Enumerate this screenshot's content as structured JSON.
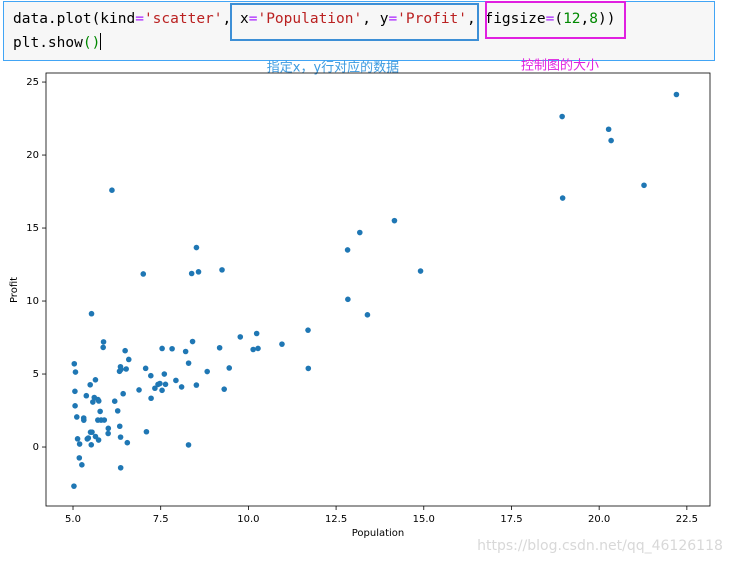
{
  "code": {
    "lines": [
      [
        {
          "text": "data.plot(kind",
          "color": "#000000"
        },
        {
          "text": "=",
          "color": "#aa22ff"
        },
        {
          "text": "'scatter'",
          "color": "#ba2121"
        },
        {
          "text": ", x",
          "color": "#000000"
        },
        {
          "text": "=",
          "color": "#aa22ff"
        },
        {
          "text": "'Population'",
          "color": "#ba2121"
        },
        {
          "text": ", y",
          "color": "#000000"
        },
        {
          "text": "=",
          "color": "#aa22ff"
        },
        {
          "text": "'Profit'",
          "color": "#ba2121"
        },
        {
          "text": ", figsize",
          "color": "#000000"
        },
        {
          "text": "=",
          "color": "#aa22ff"
        },
        {
          "text": "(",
          "color": "#000000"
        },
        {
          "text": "12",
          "color": "#008800"
        },
        {
          "text": ",",
          "color": "#000000"
        },
        {
          "text": "8",
          "color": "#008800"
        },
        {
          "text": "))",
          "color": "#000000"
        }
      ],
      [
        {
          "text": "plt.show",
          "color": "#000000"
        },
        {
          "text": "()",
          "color": "#008800"
        }
      ]
    ]
  },
  "annotations": [
    {
      "text": "指定x，y行对应的数据",
      "color": "#3d9be0"
    },
    {
      "text": "控制图的大小",
      "color": "#e020e0"
    }
  ],
  "watermark": "https://blog.csdn.net/qq_46126118",
  "chart_data": {
    "type": "scatter",
    "x_label": "Population",
    "y_label": "Profit",
    "color": "#1f77b4",
    "x": [
      6.1101,
      5.5277,
      8.5186,
      7.0032,
      5.8598,
      8.3829,
      7.4764,
      8.5781,
      6.4862,
      5.0546,
      5.7107,
      14.164,
      5.734,
      8.4084,
      5.6407,
      5.3794,
      6.3654,
      5.1301,
      6.4296,
      7.0708,
      6.1891,
      20.27,
      5.4901,
      6.3261,
      5.5649,
      18.945,
      12.828,
      10.957,
      13.176,
      22.203,
      5.2524,
      6.5894,
      9.2482,
      5.8918,
      8.2111,
      7.9334,
      8.0959,
      5.6063,
      12.836,
      6.3534,
      5.4069,
      6.8825,
      11.708,
      5.7737,
      7.8247,
      7.0931,
      5.0702,
      5.8014,
      11.7,
      5.5416,
      7.5402,
      5.3077,
      7.4239,
      7.6031,
      6.3328,
      6.3589,
      6.2742,
      5.6397,
      9.3102,
      9.4536,
      8.8254,
      5.1793,
      21.279,
      14.908,
      18.959,
      7.2182,
      8.2951,
      10.236,
      5.4994,
      20.341,
      10.136,
      7.3345,
      6.0062,
      7.2259,
      5.0269,
      6.5479,
      7.5386,
      5.0365,
      10.274,
      5.1077,
      5.7292,
      5.1884,
      6.3557,
      9.7687,
      6.5159,
      8.5172,
      9.1802,
      6.002,
      5.5204,
      5.0594,
      5.7077,
      7.6366,
      5.8707,
      5.3054,
      8.2934,
      13.394,
      5.4369
    ],
    "values": [
      17.592,
      9.1302,
      13.662,
      11.854,
      6.8233,
      11.886,
      4.3483,
      12,
      6.5987,
      3.8166,
      3.2522,
      15.505,
      3.1551,
      7.2258,
      0.71618,
      3.5129,
      5.3048,
      0.56077,
      3.6518,
      5.3893,
      3.1386,
      21.767,
      4.263,
      5.1875,
      3.0825,
      22.638,
      13.501,
      7.0467,
      14.692,
      24.147,
      -1.22,
      5.9966,
      12.134,
      1.8495,
      6.5426,
      4.5623,
      4.1164,
      3.3928,
      10.117,
      5.4974,
      0.55657,
      3.9115,
      5.3854,
      2.4406,
      6.7318,
      1.0463,
      5.1337,
      1.844,
      8.0043,
      1.0179,
      6.7504,
      1.8396,
      4.2885,
      4.9981,
      1.4233,
      -1.4211,
      2.4756,
      4.6042,
      3.9624,
      5.4141,
      5.1694,
      -0.74279,
      17.929,
      12.054,
      17.054,
      4.8852,
      5.7442,
      7.7754,
      1.0173,
      20.992,
      6.6799,
      4.0259,
      1.2784,
      3.3411,
      -2.6807,
      0.29678,
      3.8845,
      5.7014,
      6.7526,
      2.0576,
      0.47953,
      0.20421,
      0.67861,
      7.5435,
      5.3436,
      4.2415,
      6.7981,
      0.92695,
      0.152,
      2.8214,
      1.8451,
      4.2959,
      7.2029,
      1.9869,
      0.14454,
      9.0551,
      0.61705
    ],
    "xlim": [
      4.23,
      23.16
    ],
    "ylim": [
      -4.04,
      25.62
    ],
    "xticks": [
      {
        "value": 5,
        "label": "5.0"
      },
      {
        "value": 7.5,
        "label": "7.5"
      },
      {
        "value": 10,
        "label": "10.0"
      },
      {
        "value": 12.5,
        "label": "12.5"
      },
      {
        "value": 15,
        "label": "15.0"
      },
      {
        "value": 17.5,
        "label": "17.5"
      },
      {
        "value": 20,
        "label": "20.0"
      },
      {
        "value": 22.5,
        "label": "22.5"
      }
    ],
    "yticks": [
      0,
      5,
      10,
      15,
      20,
      25
    ]
  }
}
